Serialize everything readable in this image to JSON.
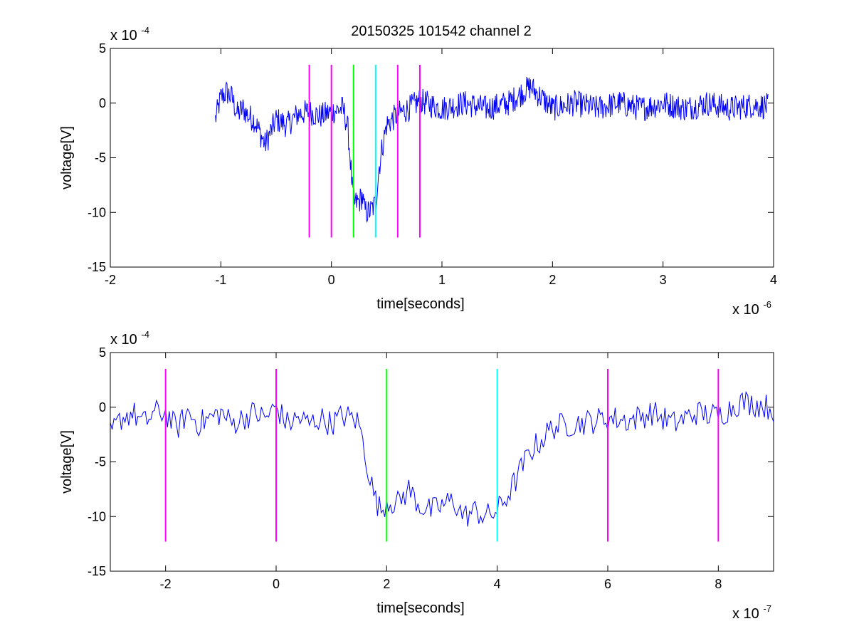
{
  "title": "20150325 101542 channel 2",
  "colors": {
    "signal": "#0000ff",
    "marker_magenta": "#ff00ff",
    "marker_green": "#00ff00",
    "marker_cyan": "#00ffff",
    "axes": "#000000",
    "background": "#ffffff"
  },
  "chart_data": [
    {
      "type": "line",
      "title": "20150325 101542 channel 2",
      "xlabel": "time[seconds]",
      "ylabel": "voltage[V]",
      "x_multiplier_label": "x 10",
      "x_multiplier_exponent": "-6",
      "y_multiplier_label": "x 10",
      "y_multiplier_exponent": "-4",
      "xlim": [
        -2,
        4
      ],
      "ylim": [
        -15,
        5
      ],
      "xticks": [
        "-2",
        "-1",
        "0",
        "1",
        "2",
        "3",
        "4"
      ],
      "yticks": [
        "5",
        "0",
        "-5",
        "-10",
        "-15"
      ],
      "grid": false,
      "markers": [
        {
          "x": -0.2,
          "color": "magenta"
        },
        {
          "x": 0.0,
          "color": "magenta"
        },
        {
          "x": 0.2,
          "color": "green"
        },
        {
          "x": 0.4,
          "color": "cyan"
        },
        {
          "x": 0.6,
          "color": "magenta"
        },
        {
          "x": 0.8,
          "color": "magenta"
        }
      ],
      "marker_range": [
        -12.3,
        3.5
      ],
      "series": [
        {
          "color": "blue",
          "points": [
            [
              -1.05,
              -1.5
            ],
            [
              -1.0,
              0.5
            ],
            [
              -0.95,
              1.0
            ],
            [
              -0.9,
              0.5
            ],
            [
              -0.85,
              -1.0
            ],
            [
              -0.8,
              -0.5
            ],
            [
              -0.75,
              -1.2
            ],
            [
              -0.7,
              -1.5
            ],
            [
              -0.6,
              -3.8
            ],
            [
              -0.5,
              -1.5
            ],
            [
              -0.4,
              -2.0
            ],
            [
              -0.3,
              -1.0
            ],
            [
              -0.2,
              -0.8
            ],
            [
              -0.1,
              -1.2
            ],
            [
              0.0,
              -0.8
            ],
            [
              0.1,
              -0.5
            ],
            [
              0.12,
              -1.0
            ],
            [
              0.15,
              -2.5
            ],
            [
              0.17,
              -5.0
            ],
            [
              0.19,
              -8.0
            ],
            [
              0.21,
              -9.2
            ],
            [
              0.25,
              -9.0
            ],
            [
              0.28,
              -8.5
            ],
            [
              0.3,
              -9.8
            ],
            [
              0.33,
              -10.0
            ],
            [
              0.36,
              -9.8
            ],
            [
              0.4,
              -9.2
            ],
            [
              0.43,
              -6.0
            ],
            [
              0.46,
              -4.0
            ],
            [
              0.5,
              -2.0
            ],
            [
              0.55,
              -1.5
            ],
            [
              0.6,
              -1.0
            ],
            [
              0.7,
              -0.5
            ],
            [
              0.8,
              0.2
            ],
            [
              1.0,
              -0.5
            ],
            [
              1.2,
              0.0
            ],
            [
              1.4,
              -0.5
            ],
            [
              1.6,
              0.0
            ],
            [
              1.8,
              1.5
            ],
            [
              2.0,
              -0.5
            ],
            [
              2.2,
              0.0
            ],
            [
              2.4,
              -0.5
            ],
            [
              2.6,
              0.0
            ],
            [
              2.8,
              -0.5
            ],
            [
              3.0,
              0.0
            ],
            [
              3.2,
              -0.5
            ],
            [
              3.4,
              0.0
            ],
            [
              3.6,
              -0.5
            ],
            [
              3.8,
              -0.2
            ],
            [
              3.95,
              -0.3
            ]
          ]
        }
      ]
    },
    {
      "type": "line",
      "xlabel": "time[seconds]",
      "ylabel": "voltage[V]",
      "x_multiplier_label": "x 10",
      "x_multiplier_exponent": "-7",
      "y_multiplier_label": "x 10",
      "y_multiplier_exponent": "-4",
      "xlim": [
        -3,
        9
      ],
      "ylim": [
        -15,
        5
      ],
      "xticks": [
        "-2",
        "0",
        "2",
        "4",
        "6",
        "8"
      ],
      "xtick_values": [
        -2,
        0,
        2,
        4,
        6,
        8
      ],
      "yticks": [
        "5",
        "0",
        "-5",
        "-10",
        "-15"
      ],
      "grid": false,
      "markers": [
        {
          "x": -2,
          "color": "magenta"
        },
        {
          "x": 0,
          "color": "magenta"
        },
        {
          "x": 2,
          "color": "green"
        },
        {
          "x": 4,
          "color": "cyan"
        },
        {
          "x": 6,
          "color": "magenta"
        },
        {
          "x": 8,
          "color": "magenta"
        }
      ],
      "marker_range": [
        -12.3,
        3.5
      ],
      "series": [
        {
          "color": "blue",
          "points": [
            [
              -3.0,
              -2.5
            ],
            [
              -2.8,
              -1.0
            ],
            [
              -2.6,
              -0.5
            ],
            [
              -2.4,
              -1.5
            ],
            [
              -2.2,
              -0.5
            ],
            [
              -2.0,
              -0.5
            ],
            [
              -1.8,
              -2.0
            ],
            [
              -1.6,
              -0.5
            ],
            [
              -1.4,
              -1.5
            ],
            [
              -1.2,
              -1.0
            ],
            [
              -1.0,
              -0.5
            ],
            [
              -0.8,
              -1.5
            ],
            [
              -0.6,
              -1.0
            ],
            [
              -0.4,
              -0.5
            ],
            [
              -0.2,
              -1.0
            ],
            [
              0.0,
              0.0
            ],
            [
              0.2,
              -1.5
            ],
            [
              0.4,
              -1.0
            ],
            [
              0.6,
              -1.5
            ],
            [
              0.8,
              -1.0
            ],
            [
              1.0,
              -1.5
            ],
            [
              1.2,
              -0.8
            ],
            [
              1.4,
              -1.0
            ],
            [
              1.5,
              -1.5
            ],
            [
              1.6,
              -4.0
            ],
            [
              1.7,
              -6.5
            ],
            [
              1.8,
              -8.5
            ],
            [
              1.9,
              -9.5
            ],
            [
              2.0,
              -8.5
            ],
            [
              2.2,
              -8.8
            ],
            [
              2.4,
              -7.5
            ],
            [
              2.6,
              -9.0
            ],
            [
              2.8,
              -9.5
            ],
            [
              3.0,
              -9.0
            ],
            [
              3.2,
              -8.5
            ],
            [
              3.4,
              -10.0
            ],
            [
              3.6,
              -9.5
            ],
            [
              3.8,
              -10.0
            ],
            [
              4.0,
              -9.5
            ],
            [
              4.2,
              -8.0
            ],
            [
              4.4,
              -6.0
            ],
            [
              4.6,
              -4.0
            ],
            [
              4.8,
              -3.0
            ],
            [
              5.0,
              -1.8
            ],
            [
              5.4,
              -1.5
            ],
            [
              5.8,
              -1.2
            ],
            [
              6.0,
              -1.0
            ],
            [
              6.4,
              -1.2
            ],
            [
              6.8,
              -0.5
            ],
            [
              7.2,
              -1.5
            ],
            [
              7.6,
              -0.5
            ],
            [
              8.0,
              -0.8
            ],
            [
              8.4,
              0.5
            ],
            [
              8.8,
              0.2
            ],
            [
              9.0,
              -0.2
            ]
          ]
        }
      ]
    }
  ]
}
